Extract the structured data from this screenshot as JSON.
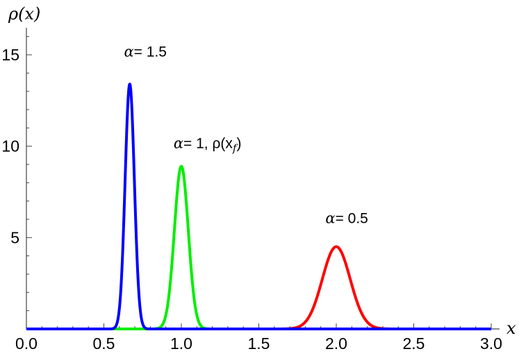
{
  "chart_data": {
    "type": "line",
    "xlabel": "x",
    "ylabel": "ρ(x)",
    "xlim": [
      0,
      3
    ],
    "ylim": [
      0,
      18
    ],
    "x_ticks": [
      "0.0",
      "0.5",
      "1.0",
      "1.5",
      "2.0",
      "2.5",
      "3.0"
    ],
    "y_ticks": [
      "5",
      "10",
      "15"
    ],
    "series": [
      {
        "color": "#ff0000",
        "peak_x": 2.0,
        "peak_y": 4.5,
        "sigma": 0.09
      },
      {
        "color": "#00ee00",
        "peak_x": 1.0,
        "peak_y": 8.9,
        "sigma": 0.045
      },
      {
        "color": "#0000ff",
        "peak_x": 0.667,
        "peak_y": 13.4,
        "sigma": 0.03
      }
    ],
    "annotations": [
      {
        "greek": "α",
        "text": "= 1.5",
        "x": 0.63,
        "y": 14.9
      },
      {
        "greek": "α",
        "text": "= 1, ρ(x",
        "sub": "f",
        "close": ")",
        "x": 0.95,
        "y": 9.9
      },
      {
        "greek": "α",
        "text": "= 0.5",
        "x": 1.93,
        "y": 5.8
      }
    ]
  }
}
